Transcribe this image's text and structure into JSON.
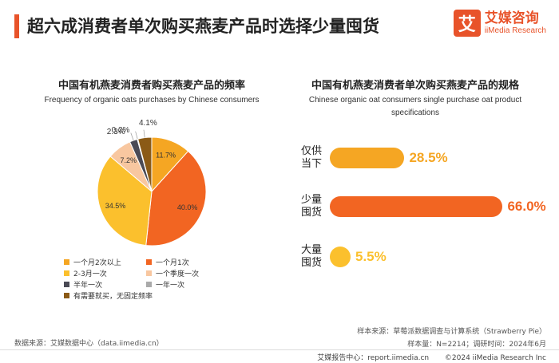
{
  "header": {
    "title": "超六成消费者单次购买燕麦产品时选择少量囤货",
    "accent_color": "#e8532a"
  },
  "logo": {
    "mark": "艾",
    "name_cn": "艾媒咨询",
    "name_en": "iiMedia Research"
  },
  "left_panel": {
    "title_cn": "中国有机燕麦消费者购买燕麦产品的频率",
    "title_en": "Frequency of organic oats purchases by Chinese consumers"
  },
  "right_panel": {
    "title_cn": "中国有机燕麦消费者单次购买燕麦产品的规格",
    "title_en_line1": "Chinese organic oat consumers single purchase oat product",
    "title_en_line2": "specifications"
  },
  "chart_data": [
    {
      "type": "pie",
      "categories": [
        "一个月2次以上",
        "一个月1次",
        "2-3月一次",
        "一个季度一次",
        "半年一次",
        "一年一次",
        "有需要就买，无固定频率"
      ],
      "values": [
        11.7,
        40.0,
        34.5,
        7.2,
        2.3,
        0.2,
        4.1
      ],
      "value_labels": [
        "11.7%",
        "40.0%",
        "34.5%",
        "7.2%",
        "2.3%",
        "0.2%",
        "4.1%"
      ],
      "colors": [
        "#f5a623",
        "#f26522",
        "#fbc02d",
        "#f8c7a0",
        "#4a4a55",
        "#aaaaaa",
        "#8b5a16"
      ],
      "legend_position": "bottom"
    },
    {
      "type": "bar",
      "orientation": "horizontal",
      "categories": [
        "仅供当下",
        "少量囤货",
        "大量囤货"
      ],
      "category_lines": [
        [
          "仅供",
          "当下"
        ],
        [
          "少量",
          "囤货"
        ],
        [
          "大量",
          "囤货"
        ]
      ],
      "values": [
        28.5,
        66.0,
        5.5
      ],
      "value_labels": [
        "28.5%",
        "66.0%",
        "5.5%"
      ],
      "colors": [
        "#f5a623",
        "#f26522",
        "#fbc02d"
      ]
    }
  ],
  "footer": {
    "source_left": "数据来源：艾媒数据中心（data.iimedia.cn）",
    "sample_source": "样本来源：草莓派数据调查与计算系统（Strawberry Pie）",
    "sample_size": "样本量：N=2214；调研时间：2024年6月",
    "report_center": "艾媒报告中心：report.iimedia.cn",
    "copyright": "©2024  iiMedia Research Inc"
  }
}
